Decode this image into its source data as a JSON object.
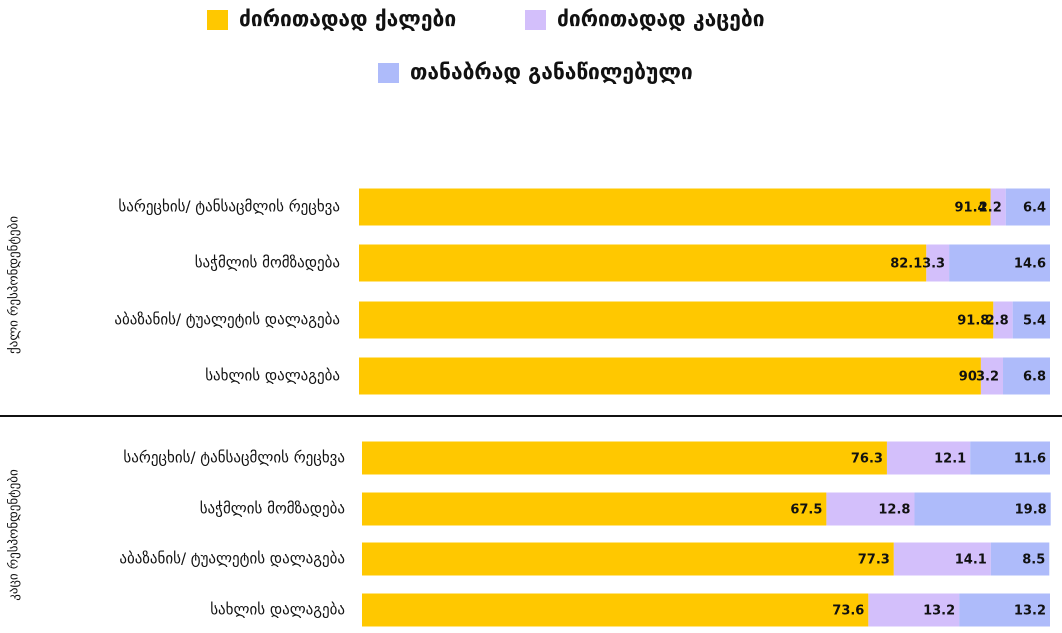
{
  "chart_data": [
    {
      "type": "bar",
      "orientation": "horizontal",
      "stacked": true,
      "group": "ქალი რესპონდენტები",
      "categories": [
        "სარეცხის/ ტანსაცმლის რეცხვა",
        "საჭმლის მომზადება",
        "აბაზანის/ ტუალეტის დალაგება",
        "სახლის დალაგება"
      ],
      "series": [
        {
          "name": "ძირითადად ქალები",
          "color": "#FFC800",
          "values": [
            91.4,
            82.1,
            91.8,
            90
          ]
        },
        {
          "name": "ძირითადად კაცები",
          "color": "#D3BFFB",
          "values": [
            2.2,
            3.3,
            2.8,
            3.2
          ]
        },
        {
          "name": "თანაბრად განაწილებული",
          "color": "#AEBBFA",
          "values": [
            6.4,
            14.6,
            5.4,
            6.8
          ]
        }
      ],
      "xlim": [
        0,
        100
      ]
    },
    {
      "type": "bar",
      "orientation": "horizontal",
      "stacked": true,
      "group": "კაცი რესპონდენტები",
      "categories": [
        "სარეცხის/ ტანსაცმლის რეცხვა",
        "საჭმლის მომზადება",
        "აბაზანის/ ტუალეტის დალაგება",
        "სახლის დალაგება"
      ],
      "series": [
        {
          "color": "#FFC800",
          "values": [
            76.3,
            67.5,
            77.3,
            73.6
          ]
        },
        {
          "color": "#D3BFFB",
          "values": [
            12.1,
            12.8,
            14.1,
            13.2
          ]
        },
        {
          "color": "#AEBBFA",
          "values": [
            11.6,
            19.8,
            8.5,
            13.2
          ]
        }
      ],
      "xlim": [
        0,
        100
      ]
    }
  ]
}
